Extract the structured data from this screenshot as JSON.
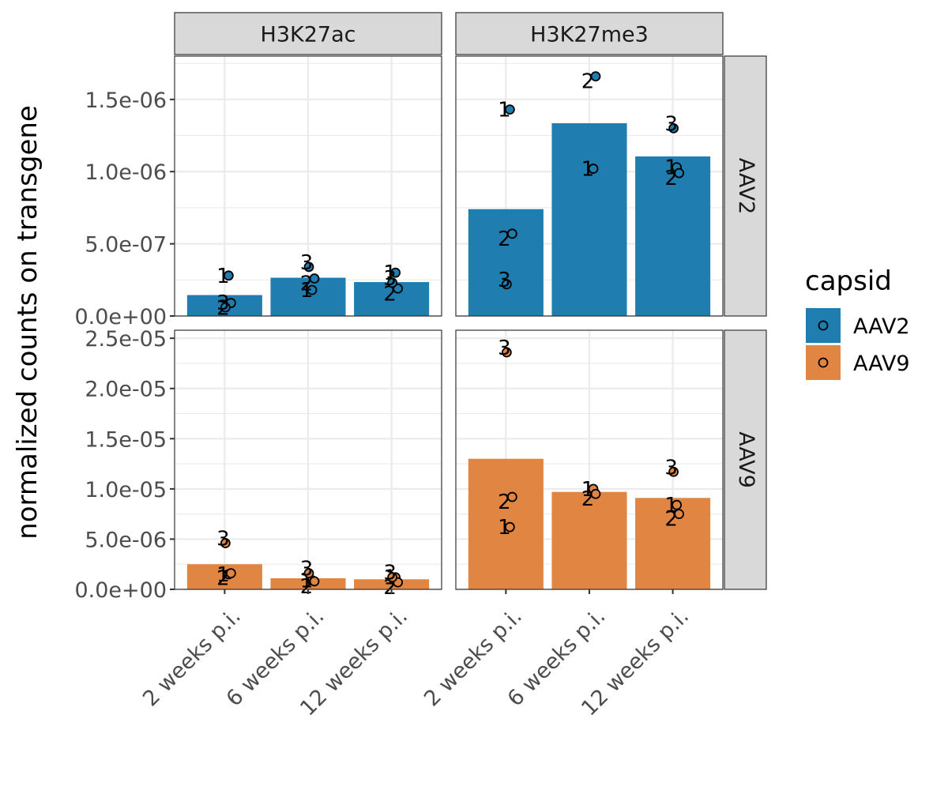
{
  "chart_data": {
    "type": "bar",
    "ylabel": "normalized counts on transgene",
    "xlabel": "",
    "categories": [
      "2 weeks p.i.",
      "6 weeks p.i.",
      "12 weeks p.i."
    ],
    "col_facets": [
      "H3K27ac",
      "H3K27me3"
    ],
    "row_facets": [
      {
        "name": "AAV2",
        "ylim": [
          0,
          1.8e-06
        ],
        "ticks": [
          0,
          5e-07,
          1e-06,
          1.5e-06
        ],
        "tick_labels": [
          "0.0e+00",
          "5.0e-07",
          "1.0e-06",
          "1.5e-06"
        ]
      },
      {
        "name": "AAV9",
        "ylim": [
          0,
          2.58e-05
        ],
        "ticks": [
          0,
          5e-06,
          1e-05,
          1.5e-05,
          2e-05,
          2.5e-05
        ],
        "tick_labels": [
          "0.0e+00",
          "5.0e-06",
          "1.0e-05",
          "1.5e-05",
          "2.0e-05",
          "2.5e-05"
        ]
      }
    ],
    "legend": {
      "title": "capsid",
      "position": "right",
      "entries": [
        {
          "name": "AAV2",
          "color": "#1f7db0"
        },
        {
          "name": "AAV9",
          "color": "#e08542"
        }
      ]
    },
    "grid": true,
    "panels": [
      {
        "row": "AAV2",
        "col": "H3K27ac",
        "bars": [
          1.45e-07,
          2.65e-07,
          2.35e-07
        ],
        "points": [
          {
            "category": "2 weeks p.i.",
            "rep": "1",
            "value": 2.8e-07
          },
          {
            "category": "2 weeks p.i.",
            "rep": "2",
            "value": 9e-08
          },
          {
            "category": "2 weeks p.i.",
            "rep": "3",
            "value": 6e-08
          },
          {
            "category": "6 weeks p.i.",
            "rep": "1",
            "value": 1.8e-07
          },
          {
            "category": "6 weeks p.i.",
            "rep": "2",
            "value": 2.6e-07
          },
          {
            "category": "6 weeks p.i.",
            "rep": "3",
            "value": 3.4e-07
          },
          {
            "category": "12 weeks p.i.",
            "rep": "1",
            "value": 3e-07
          },
          {
            "category": "12 weeks p.i.",
            "rep": "2",
            "value": 1.9e-07
          },
          {
            "category": "12 weeks p.i.",
            "rep": "3",
            "value": 2.3e-07
          }
        ]
      },
      {
        "row": "AAV2",
        "col": "H3K27me3",
        "bars": [
          7.4e-07,
          1.335e-06,
          1.105e-06
        ],
        "points": [
          {
            "category": "2 weeks p.i.",
            "rep": "1",
            "value": 1.43e-06
          },
          {
            "category": "2 weeks p.i.",
            "rep": "2",
            "value": 5.7e-07
          },
          {
            "category": "2 weeks p.i.",
            "rep": "3",
            "value": 2.2e-07
          },
          {
            "category": "6 weeks p.i.",
            "rep": "1",
            "value": 1.02e-06
          },
          {
            "category": "6 weeks p.i.",
            "rep": "2",
            "value": 1.66e-06
          },
          {
            "category": "12 weeks p.i.",
            "rep": "1",
            "value": 1.03e-06
          },
          {
            "category": "12 weeks p.i.",
            "rep": "2",
            "value": 9.9e-07
          },
          {
            "category": "12 weeks p.i.",
            "rep": "3",
            "value": 1.3e-06
          }
        ]
      },
      {
        "row": "AAV9",
        "col": "H3K27ac",
        "bars": [
          2.5e-06,
          1.1e-06,
          1e-06
        ],
        "points": [
          {
            "category": "2 weeks p.i.",
            "rep": "1",
            "value": 1.5e-06
          },
          {
            "category": "2 weeks p.i.",
            "rep": "2",
            "value": 1.6e-06
          },
          {
            "category": "2 weeks p.i.",
            "rep": "3",
            "value": 4.6e-06
          },
          {
            "category": "6 weeks p.i.",
            "rep": "1",
            "value": 9e-07
          },
          {
            "category": "6 weeks p.i.",
            "rep": "2",
            "value": 8e-07
          },
          {
            "category": "6 weeks p.i.",
            "rep": "3",
            "value": 1.6e-06
          },
          {
            "category": "12 weeks p.i.",
            "rep": "1",
            "value": 1.2e-06
          },
          {
            "category": "12 weeks p.i.",
            "rep": "2",
            "value": 7e-07
          },
          {
            "category": "12 weeks p.i.",
            "rep": "3",
            "value": 1.2e-06
          }
        ]
      },
      {
        "row": "AAV9",
        "col": "H3K27me3",
        "bars": [
          1.3e-05,
          9.7e-06,
          9.1e-06
        ],
        "points": [
          {
            "category": "2 weeks p.i.",
            "rep": "1",
            "value": 6.2e-06
          },
          {
            "category": "2 weeks p.i.",
            "rep": "2",
            "value": 9.2e-06
          },
          {
            "category": "2 weeks p.i.",
            "rep": "3",
            "value": 2.36e-05
          },
          {
            "category": "6 weeks p.i.",
            "rep": "1",
            "value": 1e-05
          },
          {
            "category": "6 weeks p.i.",
            "rep": "2",
            "value": 9.5e-06
          },
          {
            "category": "12 weeks p.i.",
            "rep": "1",
            "value": 8.4e-06
          },
          {
            "category": "12 weeks p.i.",
            "rep": "2",
            "value": 7.5e-06
          },
          {
            "category": "12 weeks p.i.",
            "rep": "3",
            "value": 1.17e-05
          }
        ]
      }
    ]
  }
}
